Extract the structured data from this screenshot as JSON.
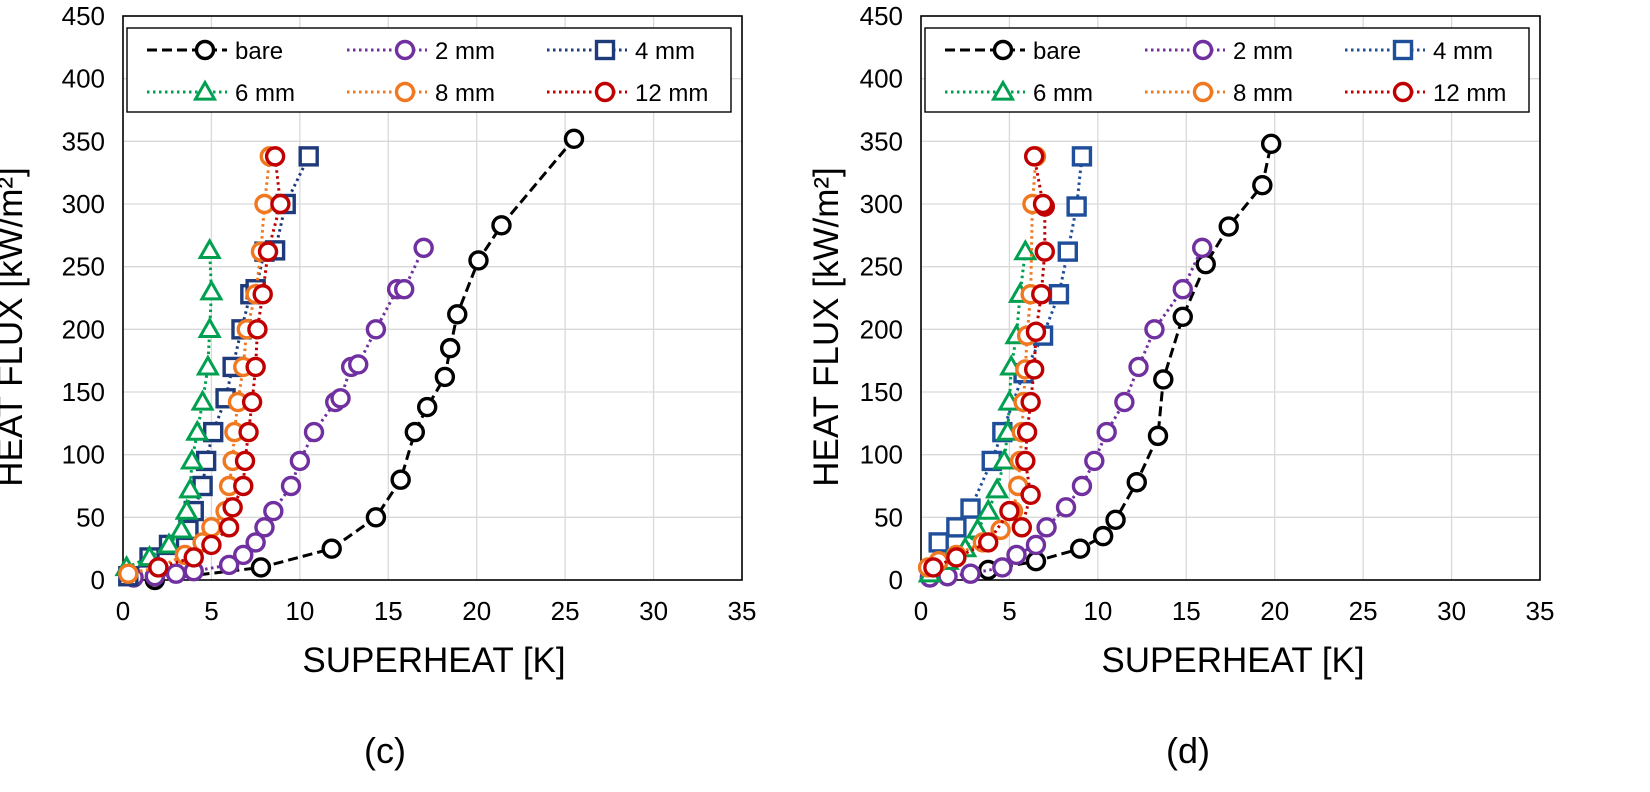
{
  "figure": {
    "panels": [
      {
        "panel_label": "(c)",
        "chart_data": {
          "type": "scatter",
          "title": "",
          "xlabel": "SUPERHEAT [K]",
          "ylabel": "HEAT FLUX [kW/m²]",
          "xlim": [
            0,
            35
          ],
          "ylim": [
            0,
            450
          ],
          "xticks": [
            0,
            5,
            10,
            15,
            20,
            25,
            30,
            35
          ],
          "yticks": [
            0,
            50,
            100,
            150,
            200,
            250,
            300,
            350,
            400,
            450
          ],
          "grid": true,
          "legend_position": "top",
          "series": [
            {
              "name": "bare",
              "color": "#000000",
              "marker": "circle",
              "dash": "dashed",
              "x": [
                1.8,
                7.8,
                11.8,
                14.3,
                15.7,
                16.5,
                17.2,
                18.2,
                18.5,
                18.9,
                20.1,
                21.4,
                25.5
              ],
              "y": [
                0,
                10,
                25,
                50,
                80,
                118,
                138,
                162,
                185,
                212,
                255,
                283,
                352
              ]
            },
            {
              "name": "2 mm",
              "color": "#7030A0",
              "marker": "circle",
              "dash": "dotted",
              "x": [
                0.6,
                1.8,
                3,
                4,
                6,
                6.8,
                7.5,
                8,
                8.5,
                9.5,
                10,
                10.8,
                12,
                12.3,
                12.9,
                13.3,
                14.3,
                15.5,
                15.9,
                17
              ],
              "y": [
                2,
                3,
                5,
                7,
                12,
                20,
                30,
                42,
                55,
                75,
                95,
                118,
                142,
                145,
                170,
                172,
                200,
                232,
                232,
                265
              ]
            },
            {
              "name": "4 mm",
              "color": "#1F3A7A",
              "marker": "square",
              "dash": "dotted",
              "x": [
                0.3,
                1.5,
                2.6,
                3.7,
                4,
                4.5,
                4.7,
                5.1,
                5.8,
                6.2,
                6.7,
                7.2,
                7.5,
                8,
                8.6,
                9.2,
                10.5
              ],
              "y": [
                3,
                18,
                28,
                40,
                55,
                75,
                95,
                118,
                145,
                170,
                200,
                228,
                232,
                262,
                263,
                300,
                338
              ]
            },
            {
              "name": "6 mm",
              "color": "#00A050",
              "marker": "triangle",
              "dash": "dotted",
              "x": [
                0.2,
                1.5,
                2.6,
                3.3,
                3.6,
                3.8,
                3.9,
                4.2,
                4.5,
                4.8,
                4.9,
                5,
                4.9
              ],
              "y": [
                10,
                18,
                28,
                40,
                55,
                72,
                95,
                118,
                142,
                170,
                200,
                230,
                263
              ]
            },
            {
              "name": "8 mm",
              "color": "#F07820",
              "marker": "circle",
              "dash": "dotted",
              "x": [
                0.3,
                2,
                3.5,
                4.5,
                5,
                5.8,
                6,
                6.2,
                6.3,
                6.5,
                6.8,
                7,
                7.5,
                7.8,
                8,
                8.3
              ],
              "y": [
                5,
                10,
                20,
                30,
                42,
                55,
                75,
                95,
                118,
                142,
                170,
                200,
                228,
                262,
                300,
                338
              ]
            },
            {
              "name": "12 mm",
              "color": "#C00000",
              "marker": "circle",
              "dash": "dotted",
              "x": [
                2,
                4,
                5,
                6,
                6.2,
                6.8,
                6.9,
                7.1,
                7.3,
                7.5,
                7.6,
                7.9,
                8.2,
                8.9,
                8.6
              ],
              "y": [
                10,
                18,
                28,
                42,
                58,
                75,
                95,
                118,
                142,
                170,
                200,
                228,
                262,
                300,
                338
              ]
            }
          ]
        }
      },
      {
        "panel_label": "(d)",
        "chart_data": {
          "type": "scatter",
          "title": "",
          "xlabel": "SUPERHEAT [K]",
          "ylabel": "HEAT FLUX [kW/m²]",
          "xlim": [
            0,
            35
          ],
          "ylim": [
            0,
            450
          ],
          "xticks": [
            0,
            5,
            10,
            15,
            20,
            25,
            30,
            35
          ],
          "yticks": [
            0,
            50,
            100,
            150,
            200,
            250,
            300,
            350,
            400,
            450
          ],
          "grid": true,
          "legend_position": "top",
          "series": [
            {
              "name": "bare",
              "color": "#000000",
              "marker": "circle",
              "dash": "dashed",
              "x": [
                3.8,
                6.5,
                9,
                10.3,
                11,
                12.2,
                13.4,
                13.7,
                14.8,
                16.1,
                17.4,
                19.3,
                19.8
              ],
              "y": [
                8,
                15,
                25,
                35,
                48,
                78,
                115,
                160,
                210,
                252,
                282,
                315,
                348
              ]
            },
            {
              "name": "2 mm",
              "color": "#7030A0",
              "marker": "circle",
              "dash": "dotted",
              "x": [
                0.5,
                1.5,
                2.8,
                4.6,
                5.4,
                6.5,
                7.1,
                8.2,
                9.1,
                9.8,
                10.5,
                11.5,
                12.3,
                13.2,
                14.8,
                15.9
              ],
              "y": [
                2,
                3,
                5,
                10,
                20,
                28,
                42,
                58,
                75,
                95,
                118,
                142,
                170,
                200,
                232,
                265
              ]
            },
            {
              "name": "4 mm",
              "color": "#1F4E9A",
              "marker": "square",
              "dash": "dotted",
              "x": [
                1,
                2,
                2.8,
                4,
                4.6,
                5.8,
                6.9,
                7.8,
                8.3,
                8.8,
                9.1
              ],
              "y": [
                30,
                42,
                57,
                95,
                118,
                165,
                195,
                228,
                262,
                298,
                338
              ]
            },
            {
              "name": "6 mm",
              "color": "#00A050",
              "marker": "triangle",
              "dash": "dotted",
              "x": [
                0.5,
                1.5,
                2.5,
                3.2,
                3.8,
                4.3,
                4.7,
                4.9,
                5,
                5.1,
                5.4,
                5.6,
                5.9
              ],
              "y": [
                5,
                15,
                25,
                40,
                55,
                72,
                95,
                118,
                142,
                170,
                195,
                228,
                262
              ]
            },
            {
              "name": "8 mm",
              "color": "#F07820",
              "marker": "circle",
              "dash": "dotted",
              "x": [
                0.4,
                1,
                2,
                3.5,
                4.5,
                5.2,
                5.5,
                5.6,
                5.7,
                5.8,
                5.9,
                6,
                6.2,
                6.3,
                6.5
              ],
              "y": [
                10,
                15,
                20,
                30,
                40,
                55,
                75,
                95,
                118,
                142,
                168,
                195,
                228,
                300,
                338
              ]
            },
            {
              "name": "12 mm",
              "color": "#C00000",
              "marker": "circle",
              "dash": "dotted",
              "x": [
                0.7,
                2,
                3.8,
                5,
                5.7,
                6.2,
                5.9,
                6,
                6.2,
                6.4,
                6.5,
                6.8,
                7,
                7,
                6.9,
                6.4
              ],
              "y": [
                10,
                18,
                30,
                55,
                42,
                68,
                95,
                118,
                142,
                168,
                198,
                228,
                262,
                298,
                300,
                338
              ]
            }
          ]
        }
      }
    ]
  }
}
